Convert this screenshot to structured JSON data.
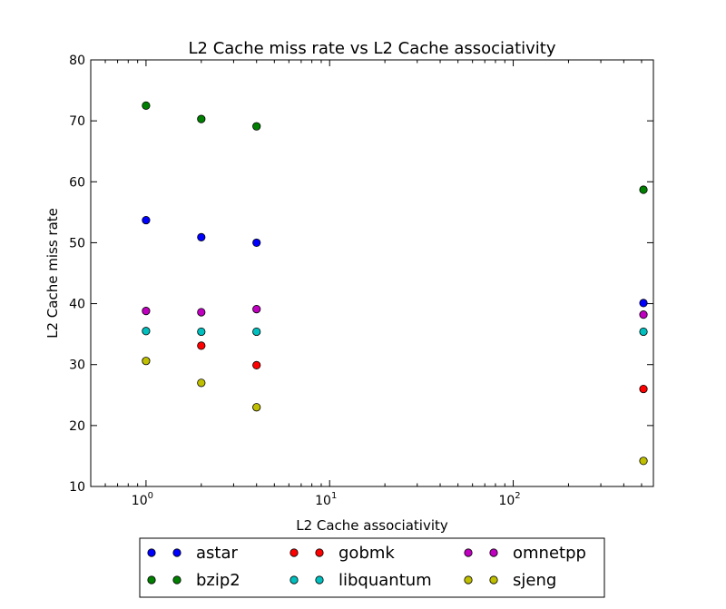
{
  "chart_data": {
    "type": "scatter",
    "title": "L2 Cache miss rate vs L2 Cache associativity",
    "xlabel": "L2 Cache associativity",
    "ylabel": "L2 Cache miss rate",
    "xscale": "log",
    "xlim": [
      0.5,
      580
    ],
    "ylim": [
      10,
      80
    ],
    "x_ticks": [
      {
        "value": 1,
        "base": "10",
        "exp": "0"
      },
      {
        "value": 10,
        "base": "10",
        "exp": "1"
      },
      {
        "value": 100,
        "base": "10",
        "exp": "2"
      }
    ],
    "y_ticks": [
      10,
      20,
      30,
      40,
      50,
      60,
      70,
      80
    ],
    "y_tick_labels": [
      "10",
      "20",
      "30",
      "40",
      "50",
      "60",
      "70",
      "80"
    ],
    "legend_position": "below",
    "series": [
      {
        "name": "astar",
        "color": "#0000ff",
        "x": [
          1,
          2,
          4,
          512
        ],
        "y": [
          53.7,
          50.9,
          50.0,
          40.1
        ]
      },
      {
        "name": "bzip2",
        "color": "#008000",
        "x": [
          1,
          2,
          4,
          512
        ],
        "y": [
          72.5,
          70.3,
          69.1,
          58.7
        ]
      },
      {
        "name": "gobmk",
        "color": "#ff0000",
        "x": [
          2,
          4,
          512
        ],
        "y": [
          33.1,
          29.9,
          26.0
        ]
      },
      {
        "name": "libquantum",
        "color": "#00bfbf",
        "x": [
          1,
          2,
          4,
          512
        ],
        "y": [
          35.5,
          35.4,
          35.4,
          35.4
        ]
      },
      {
        "name": "omnetpp",
        "color": "#bf00bf",
        "x": [
          1,
          2,
          4,
          512
        ],
        "y": [
          38.8,
          38.6,
          39.1,
          38.2
        ]
      },
      {
        "name": "sjeng",
        "color": "#bfbf00",
        "x": [
          1,
          2,
          4,
          512
        ],
        "y": [
          30.6,
          27.0,
          23.0,
          14.2
        ]
      }
    ]
  }
}
